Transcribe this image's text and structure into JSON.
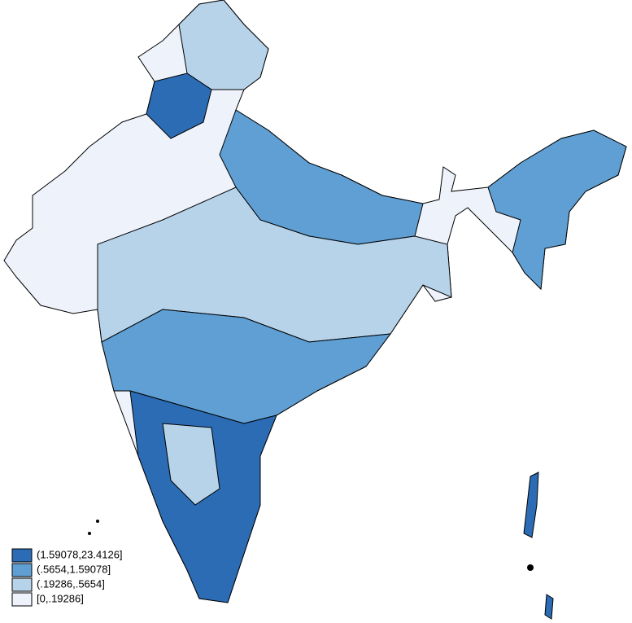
{
  "legend": {
    "items": [
      {
        "label": "(1.59078,23.4126]",
        "color": "#2b6cb4"
      },
      {
        "label": "(.5654,1.59078]",
        "color": "#5f9fd3"
      },
      {
        "label": "(.19286,.5654]",
        "color": "#b7d3ea"
      },
      {
        "label": "[0,.19286]",
        "color": "#eef3fb"
      }
    ]
  }
}
